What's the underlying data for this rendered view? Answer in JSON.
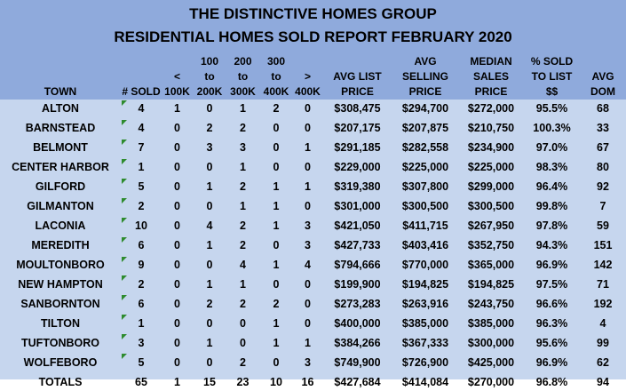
{
  "report": {
    "company": "THE DISTINCTIVE HOMES GROUP",
    "title": "RESIDENTIAL HOMES SOLD REPORT FEBRUARY 2020"
  },
  "columns": [
    {
      "key": "town",
      "lines": [
        "TOWN"
      ]
    },
    {
      "key": "sold",
      "lines": [
        "# SOLD"
      ]
    },
    {
      "key": "lt100",
      "lines": [
        "<",
        "100K"
      ]
    },
    {
      "key": "r100_200",
      "lines": [
        "100",
        "to",
        "200K"
      ]
    },
    {
      "key": "r200_300",
      "lines": [
        "200",
        "to",
        "300K"
      ]
    },
    {
      "key": "r300_400",
      "lines": [
        "300",
        "to",
        "400K"
      ]
    },
    {
      "key": "gt400",
      "lines": [
        ">",
        "400K"
      ]
    },
    {
      "key": "avg_list",
      "lines": [
        "AVG LIST",
        "PRICE"
      ]
    },
    {
      "key": "avg_selling",
      "lines": [
        "AVG",
        "SELLING",
        "PRICE"
      ]
    },
    {
      "key": "median",
      "lines": [
        "MEDIAN",
        "SALES",
        "PRICE"
      ]
    },
    {
      "key": "pct",
      "lines": [
        "% SOLD",
        "TO LIST",
        "$$"
      ]
    },
    {
      "key": "dom",
      "lines": [
        "AVG",
        "DOM"
      ]
    }
  ],
  "rows": [
    {
      "town": "ALTON",
      "sold": "4",
      "lt100": "1",
      "r100_200": "0",
      "r200_300": "1",
      "r300_400": "2",
      "gt400": "0",
      "avg_list": "$308,475",
      "avg_selling": "$294,700",
      "median": "$272,000",
      "pct": "95.5%",
      "dom": "68"
    },
    {
      "town": "BARNSTEAD",
      "sold": "4",
      "lt100": "0",
      "r100_200": "2",
      "r200_300": "2",
      "r300_400": "0",
      "gt400": "0",
      "avg_list": "$207,175",
      "avg_selling": "$207,875",
      "median": "$210,750",
      "pct": "100.3%",
      "dom": "33"
    },
    {
      "town": "BELMONT",
      "sold": "7",
      "lt100": "0",
      "r100_200": "3",
      "r200_300": "3",
      "r300_400": "0",
      "gt400": "1",
      "avg_list": "$291,185",
      "avg_selling": "$282,558",
      "median": "$234,900",
      "pct": "97.0%",
      "dom": "67"
    },
    {
      "town": "CENTER HARBOR",
      "sold": "1",
      "lt100": "0",
      "r100_200": "0",
      "r200_300": "1",
      "r300_400": "0",
      "gt400": "0",
      "avg_list": "$229,000",
      "avg_selling": "$225,000",
      "median": "$225,000",
      "pct": "98.3%",
      "dom": "80"
    },
    {
      "town": "GILFORD",
      "sold": "5",
      "lt100": "0",
      "r100_200": "1",
      "r200_300": "2",
      "r300_400": "1",
      "gt400": "1",
      "avg_list": "$319,380",
      "avg_selling": "$307,800",
      "median": "$299,000",
      "pct": "96.4%",
      "dom": "92"
    },
    {
      "town": "GILMANTON",
      "sold": "2",
      "lt100": "0",
      "r100_200": "0",
      "r200_300": "1",
      "r300_400": "1",
      "gt400": "0",
      "avg_list": "$301,000",
      "avg_selling": "$300,500",
      "median": "$300,500",
      "pct": "99.8%",
      "dom": "7"
    },
    {
      "town": "LACONIA",
      "sold": "10",
      "lt100": "0",
      "r100_200": "4",
      "r200_300": "2",
      "r300_400": "1",
      "gt400": "3",
      "avg_list": "$421,050",
      "avg_selling": "$411,715",
      "median": "$267,950",
      "pct": "97.8%",
      "dom": "59"
    },
    {
      "town": "MEREDITH",
      "sold": "6",
      "lt100": "0",
      "r100_200": "1",
      "r200_300": "2",
      "r300_400": "0",
      "gt400": "3",
      "avg_list": "$427,733",
      "avg_selling": "$403,416",
      "median": "$352,750",
      "pct": "94.3%",
      "dom": "151"
    },
    {
      "town": "MOULTONBORO",
      "sold": "9",
      "lt100": "0",
      "r100_200": "0",
      "r200_300": "4",
      "r300_400": "1",
      "gt400": "4",
      "avg_list": "$794,666",
      "avg_selling": "$770,000",
      "median": "$365,000",
      "pct": "96.9%",
      "dom": "142"
    },
    {
      "town": "NEW HAMPTON",
      "sold": "2",
      "lt100": "0",
      "r100_200": "1",
      "r200_300": "1",
      "r300_400": "0",
      "gt400": "0",
      "avg_list": "$199,900",
      "avg_selling": "$194,825",
      "median": "$194,825",
      "pct": "97.5%",
      "dom": "71"
    },
    {
      "town": "SANBORNTON",
      "sold": "6",
      "lt100": "0",
      "r100_200": "2",
      "r200_300": "2",
      "r300_400": "2",
      "gt400": "0",
      "avg_list": "$273,283",
      "avg_selling": "$263,916",
      "median": "$243,750",
      "pct": "96.6%",
      "dom": "192"
    },
    {
      "town": "TILTON",
      "sold": "1",
      "lt100": "0",
      "r100_200": "0",
      "r200_300": "0",
      "r300_400": "1",
      "gt400": "0",
      "avg_list": "$400,000",
      "avg_selling": "$385,000",
      "median": "$385,000",
      "pct": "96.3%",
      "dom": "4"
    },
    {
      "town": "TUFTONBORO",
      "sold": "3",
      "lt100": "0",
      "r100_200": "1",
      "r200_300": "0",
      "r300_400": "1",
      "gt400": "1",
      "avg_list": "$384,266",
      "avg_selling": "$367,333",
      "median": "$300,000",
      "pct": "95.6%",
      "dom": "99"
    },
    {
      "town": "WOLFEBORO",
      "sold": "5",
      "lt100": "0",
      "r100_200": "0",
      "r200_300": "2",
      "r300_400": "0",
      "gt400": "3",
      "avg_list": "$749,900",
      "avg_selling": "$726,900",
      "median": "$425,000",
      "pct": "96.9%",
      "dom": "62"
    }
  ],
  "totals": {
    "town": "TOTALS",
    "sold": "65",
    "lt100": "1",
    "r100_200": "15",
    "r200_300": "23",
    "r300_400": "10",
    "gt400": "16",
    "avg_list": "$427,684",
    "avg_selling": "$414,084",
    "median": "$270,000",
    "pct": "96.8%",
    "dom": "94"
  },
  "colors": {
    "header_band": "#8faadc",
    "body_background": "#c6d6ee",
    "flag": "#2e8b2e"
  }
}
